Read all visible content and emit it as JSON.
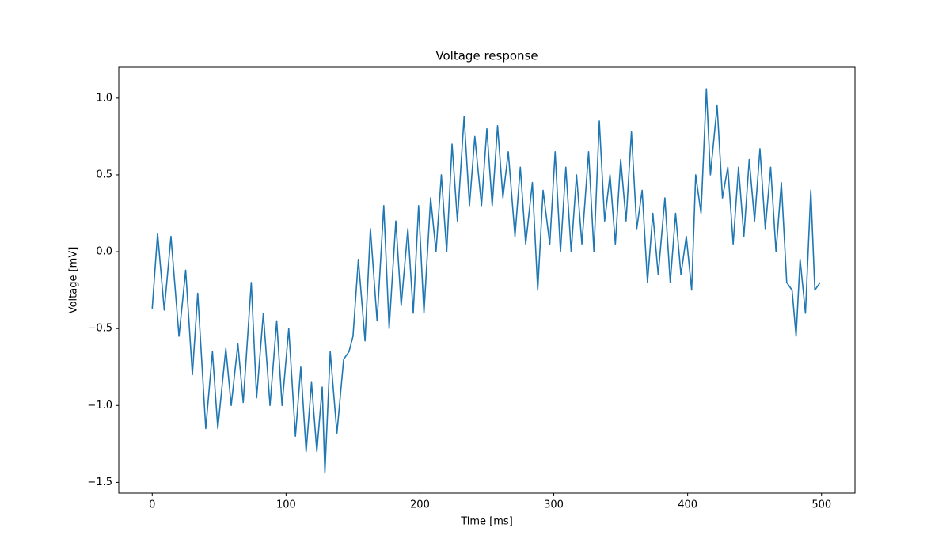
{
  "chart_data": {
    "type": "line",
    "title": "Voltage response",
    "x_label": "Time [ms]",
    "y_label": "Voltage [mV]",
    "color": "#1f77b4",
    "grid": false,
    "x": [
      0,
      4,
      9,
      14,
      20,
      25,
      30,
      34,
      40,
      45,
      49,
      55,
      59,
      64,
      68,
      74,
      78,
      83,
      88,
      93,
      97,
      102,
      107,
      111,
      115,
      119,
      123,
      127,
      129,
      133,
      138,
      143,
      147,
      150,
      154,
      159,
      163,
      168,
      173,
      177,
      182,
      186,
      191,
      195,
      199,
      203,
      208,
      212,
      216,
      220,
      224,
      228,
      233,
      237,
      241,
      246,
      250,
      254,
      258,
      262,
      266,
      271,
      275,
      279,
      284,
      288,
      292,
      297,
      301,
      305,
      309,
      313,
      317,
      321,
      326,
      330,
      334,
      338,
      342,
      346,
      350,
      354,
      358,
      362,
      366,
      370,
      374,
      378,
      383,
      387,
      391,
      395,
      399,
      403,
      406,
      410,
      414,
      417,
      422,
      426,
      430,
      434,
      438,
      442,
      446,
      450,
      454,
      458,
      462,
      466,
      470,
      474,
      478,
      481,
      484,
      488,
      492,
      495,
      499
    ],
    "values": [
      -0.37,
      0.12,
      -0.38,
      0.1,
      -0.55,
      -0.12,
      -0.8,
      -0.27,
      -1.15,
      -0.65,
      -1.15,
      -0.63,
      -1.0,
      -0.6,
      -0.98,
      -0.2,
      -0.95,
      -0.4,
      -1.0,
      -0.45,
      -1.0,
      -0.5,
      -1.2,
      -0.75,
      -1.3,
      -0.85,
      -1.3,
      -0.88,
      -1.44,
      -0.65,
      -1.18,
      -0.7,
      -0.65,
      -0.55,
      -0.05,
      -0.58,
      0.15,
      -0.45,
      0.3,
      -0.5,
      0.2,
      -0.35,
      0.15,
      -0.4,
      0.3,
      -0.4,
      0.35,
      0.0,
      0.5,
      0.0,
      0.7,
      0.2,
      0.88,
      0.3,
      0.75,
      0.3,
      0.8,
      0.3,
      0.82,
      0.35,
      0.65,
      0.1,
      0.55,
      0.05,
      0.45,
      -0.25,
      0.4,
      0.05,
      0.65,
      0.0,
      0.55,
      0.0,
      0.5,
      0.05,
      0.65,
      0.0,
      0.85,
      0.2,
      0.5,
      0.05,
      0.6,
      0.2,
      0.78,
      0.15,
      0.4,
      -0.2,
      0.25,
      -0.15,
      0.35,
      -0.2,
      0.25,
      -0.15,
      0.1,
      -0.25,
      0.5,
      0.25,
      1.06,
      0.5,
      0.95,
      0.35,
      0.55,
      0.05,
      0.55,
      0.1,
      0.6,
      0.2,
      0.67,
      0.15,
      0.55,
      0.0,
      0.45,
      -0.2,
      -0.25,
      -0.55,
      -0.05,
      -0.4,
      0.4,
      -0.25,
      -0.2
    ],
    "xlim": [
      -25,
      525
    ],
    "xticks": [
      0,
      100,
      200,
      300,
      400,
      500
    ],
    "ylim": [
      -1.57,
      1.2
    ],
    "yticks": [
      {
        "value": -1.5,
        "label": "−1.5"
      },
      {
        "value": -1.0,
        "label": "−1.0"
      },
      {
        "value": -0.5,
        "label": "−0.5"
      },
      {
        "value": 0.0,
        "label": "0.0"
      },
      {
        "value": 0.5,
        "label": "0.5"
      },
      {
        "value": 1.0,
        "label": "1.0"
      }
    ]
  }
}
